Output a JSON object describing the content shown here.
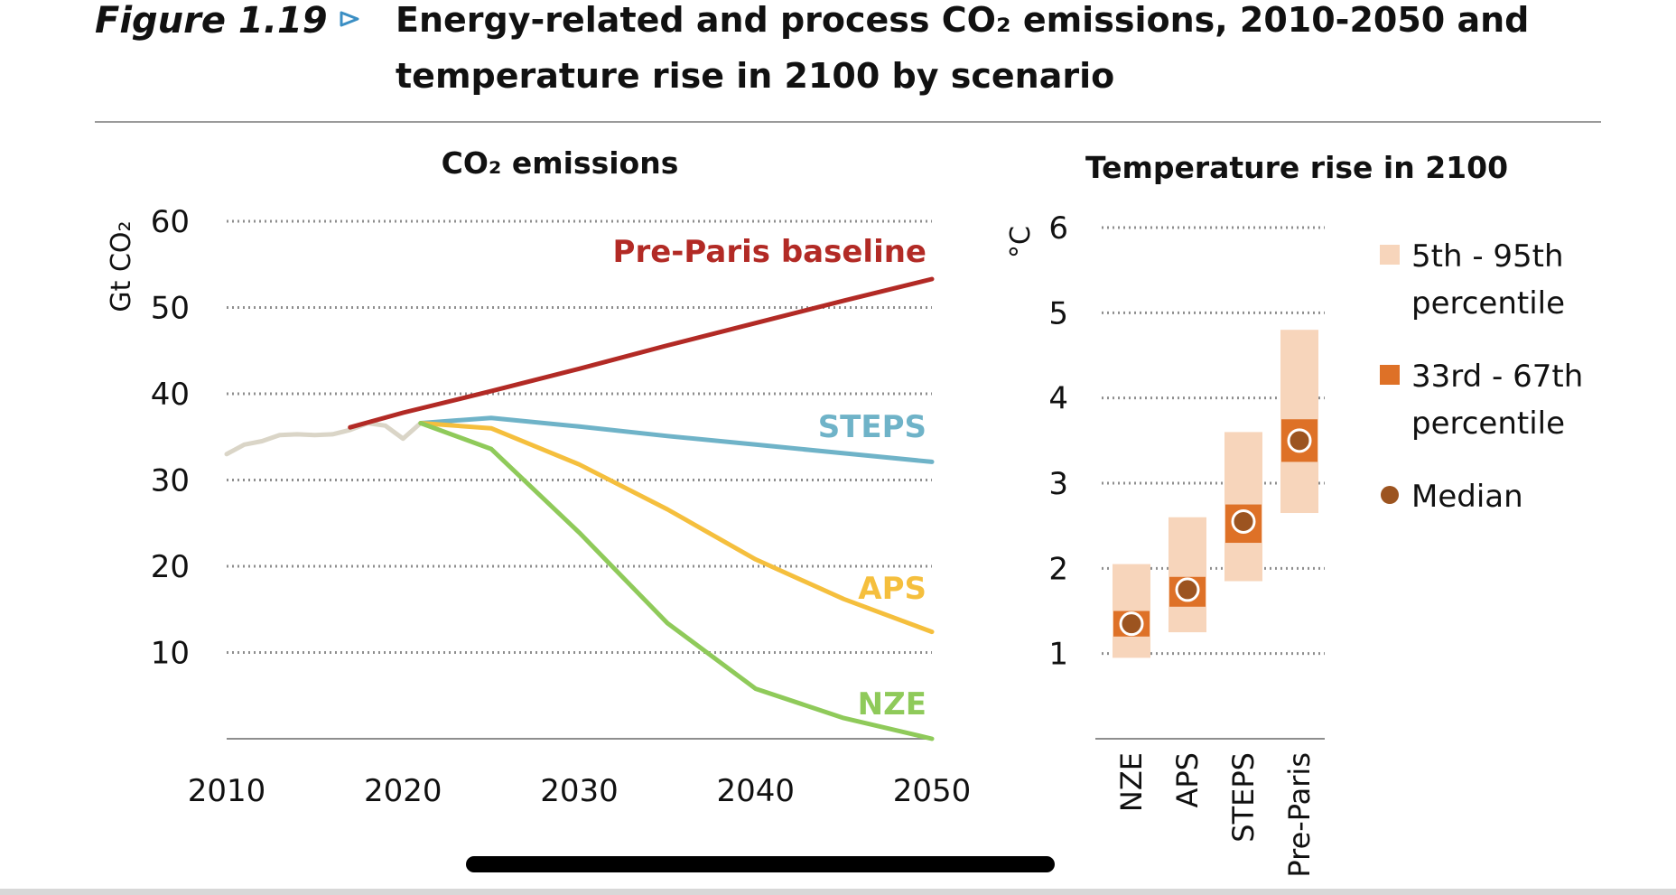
{
  "figure": {
    "label": "Figure 1.19",
    "title_line1": "Energy-related and process CO₂ emissions, 2010-2050 and",
    "title_line2": "temperature rise in 2100 by scenario"
  },
  "chart_data": [
    {
      "type": "line",
      "title": "CO₂ emissions",
      "ylabel": "Gt CO₂",
      "xlabel": "",
      "xlim": [
        2010,
        2050
      ],
      "ylim": [
        0,
        60
      ],
      "xticks": [
        2010,
        2020,
        2030,
        2040,
        2050
      ],
      "yticks": [
        10,
        20,
        30,
        40,
        50,
        60
      ],
      "grid": true,
      "series": [
        {
          "name": "",
          "color": "#dad5c7",
          "points": [
            [
              2010,
              33
            ],
            [
              2011,
              34.1
            ],
            [
              2012,
              34.5
            ],
            [
              2013,
              35.2
            ],
            [
              2014,
              35.3
            ],
            [
              2015,
              35.2
            ],
            [
              2016,
              35.3
            ],
            [
              2017,
              35.8
            ],
            [
              2018,
              36.6
            ],
            [
              2019,
              36.3
            ],
            [
              2020,
              34.8
            ],
            [
              2021,
              36.6
            ]
          ]
        },
        {
          "name": "Pre-Paris baseline",
          "color": "#b22a25",
          "points": [
            [
              2017,
              36.1
            ],
            [
              2020,
              37.8
            ],
            [
              2025,
              40.3
            ],
            [
              2030,
              42.9
            ],
            [
              2035,
              45.6
            ],
            [
              2040,
              48.2
            ],
            [
              2045,
              50.8
            ],
            [
              2050,
              53.3
            ]
          ]
        },
        {
          "name": "STEPS",
          "color": "#6fb3c8",
          "points": [
            [
              2021,
              36.6
            ],
            [
              2025,
              37.2
            ],
            [
              2030,
              36.2
            ],
            [
              2035,
              35.1
            ],
            [
              2040,
              34.1
            ],
            [
              2045,
              33.1
            ],
            [
              2050,
              32.1
            ]
          ]
        },
        {
          "name": "APS",
          "color": "#f5bf3d",
          "points": [
            [
              2021,
              36.6
            ],
            [
              2025,
              36.0
            ],
            [
              2030,
              31.8
            ],
            [
              2035,
              26.6
            ],
            [
              2040,
              20.8
            ],
            [
              2045,
              16.2
            ],
            [
              2050,
              12.4
            ]
          ]
        },
        {
          "name": "NZE",
          "color": "#8fca5a",
          "points": [
            [
              2021,
              36.6
            ],
            [
              2025,
              33.6
            ],
            [
              2030,
              23.9
            ],
            [
              2035,
              13.4
            ],
            [
              2040,
              5.8
            ],
            [
              2045,
              2.4
            ],
            [
              2050,
              0.0
            ]
          ]
        }
      ]
    },
    {
      "type": "range-bar",
      "title": "Temperature rise in 2100",
      "ylabel": "°C",
      "ylim": [
        0,
        6
      ],
      "yticks": [
        1,
        2,
        3,
        4,
        5,
        6
      ],
      "grid": true,
      "categories": [
        "NZE",
        "APS",
        "STEPS",
        "Pre-Paris"
      ],
      "p5_p95": [
        [
          0.95,
          2.05
        ],
        [
          1.25,
          2.6
        ],
        [
          1.85,
          3.6
        ],
        [
          2.65,
          4.8
        ]
      ],
      "p33_p67": [
        [
          1.2,
          1.5
        ],
        [
          1.55,
          1.9
        ],
        [
          2.3,
          2.75
        ],
        [
          3.25,
          3.75
        ]
      ],
      "median": [
        1.35,
        1.75,
        2.55,
        3.5
      ],
      "legend": [
        "5th - 95th percentile",
        "33rd - 67th percentile",
        "Median"
      ],
      "legend_position": "right",
      "colors": {
        "p5_p95": "#f7d5bb",
        "p33_p67": "#de7127",
        "median": "#9c5420"
      }
    }
  ]
}
